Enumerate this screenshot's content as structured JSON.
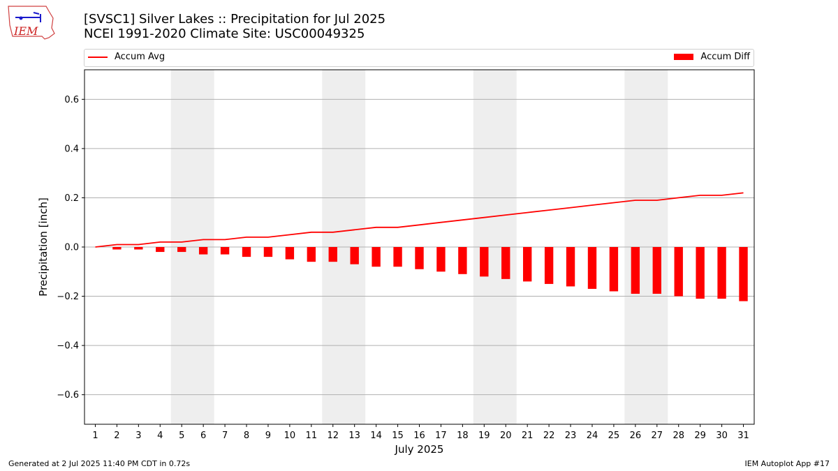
{
  "header": {
    "title_line1": "[SVSC1] Silver Lakes :: Precipitation for Jul 2025",
    "title_line2": "NCEI 1991-2020 Climate Site: USC00049325"
  },
  "logo": {
    "text": "IEM"
  },
  "legend": {
    "line_label": "Accum Avg",
    "bar_label": "Accum Diff"
  },
  "footer": {
    "generated": "Generated at 2 Jul 2025 11:40 PM CDT in 0.72s",
    "app": "IEM Autoplot App #17"
  },
  "colors": {
    "series": "#ff0000",
    "weekend_band": "#eeeeee",
    "grid": "#b0b0b0"
  },
  "chart_data": {
    "type": "bar",
    "xlabel": "July 2025",
    "ylabel": "Precipitation [inch]",
    "ylim": [
      -0.72,
      0.72
    ],
    "yticks": [
      -0.6,
      -0.4,
      -0.2,
      0.0,
      0.2,
      0.4,
      0.6
    ],
    "ytick_labels": [
      "−0.6",
      "−0.4",
      "−0.2",
      "0.0",
      "0.2",
      "0.4",
      "0.6"
    ],
    "x": [
      1,
      2,
      3,
      4,
      5,
      6,
      7,
      8,
      9,
      10,
      11,
      12,
      13,
      14,
      15,
      16,
      17,
      18,
      19,
      20,
      21,
      22,
      23,
      24,
      25,
      26,
      27,
      28,
      29,
      30,
      31
    ],
    "weekend_bands": [
      [
        5,
        6
      ],
      [
        12,
        13
      ],
      [
        19,
        20
      ],
      [
        26,
        27
      ]
    ],
    "grid": "y",
    "series": [
      {
        "name": "Accum Avg",
        "kind": "line",
        "values": [
          0.0,
          0.01,
          0.01,
          0.02,
          0.02,
          0.03,
          0.03,
          0.04,
          0.04,
          0.05,
          0.06,
          0.06,
          0.07,
          0.08,
          0.08,
          0.09,
          0.1,
          0.11,
          0.12,
          0.13,
          0.14,
          0.15,
          0.16,
          0.17,
          0.18,
          0.19,
          0.19,
          0.2,
          0.21,
          0.21,
          0.22
        ]
      },
      {
        "name": "Accum Diff",
        "kind": "bar",
        "values": [
          0.0,
          -0.01,
          -0.01,
          -0.02,
          -0.02,
          -0.03,
          -0.03,
          -0.04,
          -0.04,
          -0.05,
          -0.06,
          -0.06,
          -0.07,
          -0.08,
          -0.08,
          -0.09,
          -0.1,
          -0.11,
          -0.12,
          -0.13,
          -0.14,
          -0.15,
          -0.16,
          -0.17,
          -0.18,
          -0.19,
          -0.19,
          -0.2,
          -0.21,
          -0.21,
          -0.22
        ]
      }
    ]
  }
}
